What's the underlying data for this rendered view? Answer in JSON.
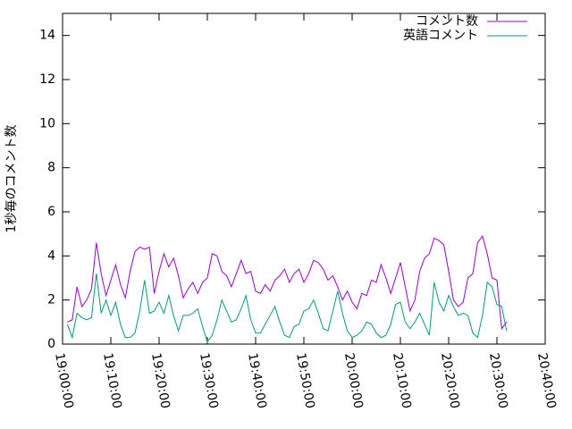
{
  "chart_data": {
    "type": "line",
    "ylabel": "1秒毎のコメント数",
    "x": [
      1,
      2,
      3,
      4,
      5,
      6,
      7,
      8,
      9,
      10,
      11,
      12,
      13,
      14,
      15,
      16,
      17,
      18,
      19,
      20,
      21,
      22,
      23,
      24,
      25,
      26,
      27,
      28,
      29,
      30,
      31,
      32,
      33,
      34,
      35,
      36,
      37,
      38,
      39,
      40,
      41,
      42,
      43,
      44,
      45,
      46,
      47,
      48,
      49,
      50,
      51,
      52,
      53,
      54,
      55,
      56,
      57,
      58,
      59,
      60,
      61,
      62,
      63,
      64,
      65,
      66,
      67,
      68,
      69,
      70,
      71,
      72,
      73,
      74,
      75,
      76,
      77,
      78,
      79,
      80,
      81,
      82,
      83,
      84,
      85,
      86,
      87,
      88,
      89,
      90,
      91,
      92
    ],
    "series": [
      {
        "name": "コメント数",
        "color": "#9400d3",
        "values": [
          1.0,
          1.1,
          2.6,
          1.7,
          2.0,
          2.5,
          4.6,
          3.2,
          2.2,
          2.9,
          3.6,
          2.7,
          2.1,
          3.3,
          4.2,
          4.4,
          4.3,
          4.4,
          2.3,
          3.3,
          4.1,
          3.5,
          3.9,
          3.1,
          2.1,
          2.5,
          2.8,
          2.3,
          2.8,
          3.0,
          4.1,
          4.0,
          3.3,
          3.1,
          2.6,
          3.2,
          3.8,
          3.2,
          3.3,
          2.4,
          2.3,
          2.7,
          2.4,
          2.9,
          3.1,
          3.4,
          2.8,
          3.2,
          3.4,
          2.8,
          3.2,
          3.8,
          3.7,
          3.4,
          2.9,
          3.1,
          2.6,
          2.0,
          2.4,
          1.9,
          1.6,
          2.3,
          2.2,
          2.9,
          2.8,
          3.6,
          3.0,
          2.3,
          3.0,
          3.7,
          2.6,
          1.5,
          2.0,
          3.3,
          3.9,
          4.1,
          4.8,
          4.7,
          4.5,
          3.3,
          2.0,
          1.7,
          1.9,
          3.0,
          3.2,
          4.6,
          4.9,
          4.1,
          3.0,
          2.9,
          0.7,
          1.0
        ]
      },
      {
        "name": "英語コメント",
        "color": "#009e73",
        "values": [
          0.9,
          0.3,
          1.4,
          1.2,
          1.1,
          1.2,
          3.2,
          1.4,
          2.0,
          1.3,
          1.9,
          0.9,
          0.3,
          0.3,
          0.5,
          1.5,
          2.9,
          1.4,
          1.5,
          1.9,
          1.4,
          2.2,
          1.3,
          0.6,
          1.3,
          1.3,
          1.4,
          1.6,
          0.8,
          0.1,
          0.4,
          1.1,
          2.0,
          1.5,
          1.0,
          1.1,
          1.6,
          2.2,
          1.1,
          0.5,
          0.5,
          0.9,
          1.3,
          1.7,
          1.0,
          0.4,
          0.3,
          0.8,
          0.9,
          1.5,
          1.6,
          2.0,
          1.4,
          0.7,
          0.6,
          1.5,
          2.4,
          1.4,
          0.6,
          0.3,
          0.4,
          0.6,
          1.0,
          0.9,
          0.5,
          0.3,
          0.4,
          0.9,
          1.8,
          1.9,
          1.0,
          0.7,
          1.0,
          1.4,
          0.9,
          0.4,
          2.8,
          1.9,
          1.5,
          2.2,
          1.7,
          1.3,
          1.4,
          1.3,
          0.5,
          0.3,
          1.3,
          2.8,
          2.6,
          1.8,
          1.7,
          0.6
        ]
      }
    ],
    "xlim": [
      0,
      100
    ],
    "xticks": [
      {
        "value": 0,
        "label": "19:00:00"
      },
      {
        "value": 10,
        "label": "19:10:00"
      },
      {
        "value": 20,
        "label": "19:20:00"
      },
      {
        "value": 30,
        "label": "19:30:00"
      },
      {
        "value": 40,
        "label": "19:40:00"
      },
      {
        "value": 50,
        "label": "19:50:00"
      },
      {
        "value": 60,
        "label": "20:00:00"
      },
      {
        "value": 70,
        "label": "20:10:00"
      },
      {
        "value": 80,
        "label": "20:20:00"
      },
      {
        "value": 90,
        "label": "20:30:00"
      },
      {
        "value": 100,
        "label": "20:40:00"
      }
    ],
    "ylim": [
      0,
      15
    ],
    "yticks": [
      0,
      2,
      4,
      6,
      8,
      10,
      12,
      14
    ],
    "legend": "top-right"
  }
}
